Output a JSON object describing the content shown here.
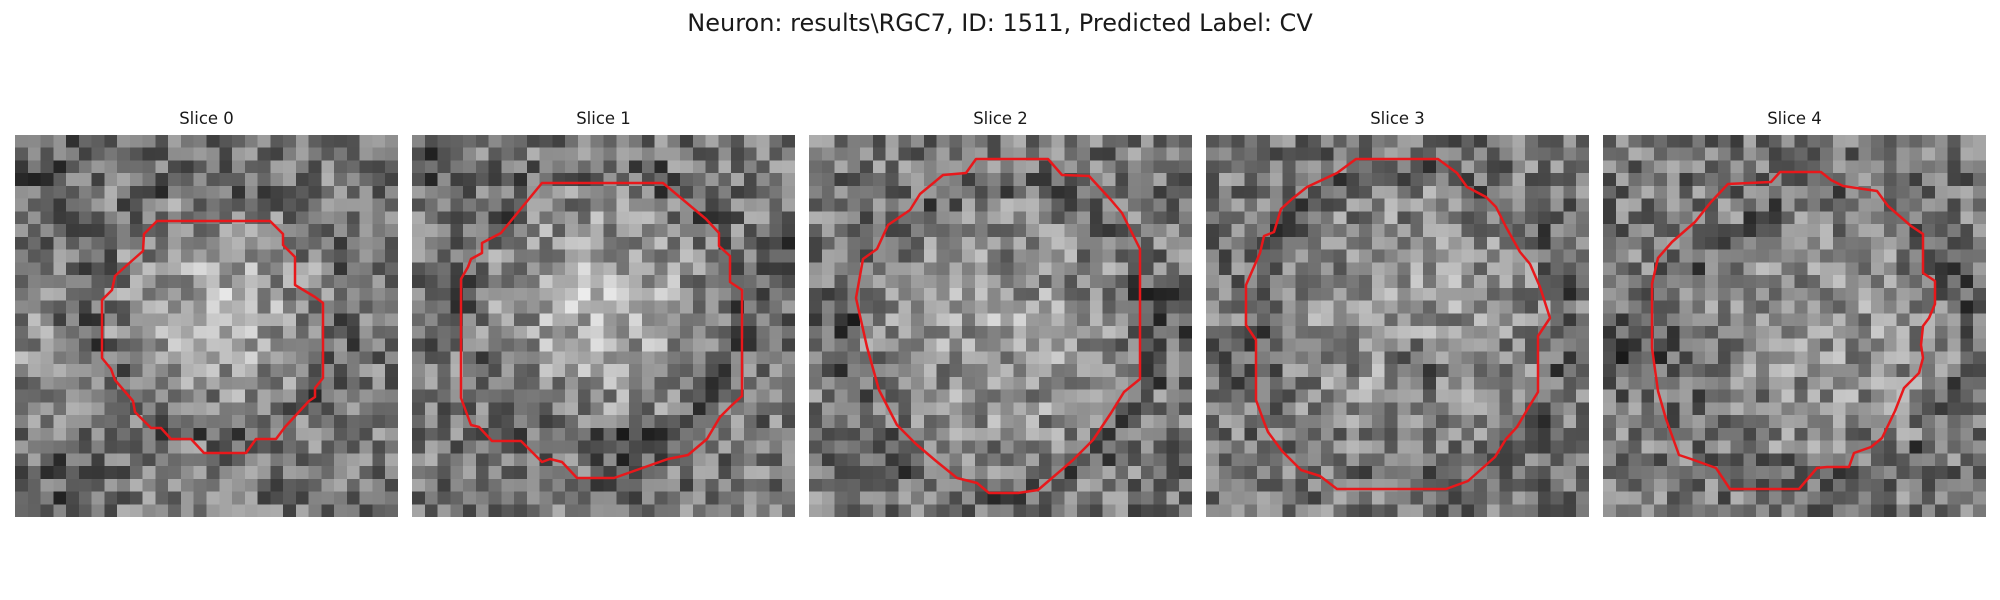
{
  "figure": {
    "title": "Neuron: results\\RGC7, ID: 1511, Predicted Label: CV"
  },
  "slices": [
    {
      "title": "Slice 0",
      "contour_color": "#e8181b"
    },
    {
      "title": "Slice 1",
      "contour_color": "#e8181b"
    },
    {
      "title": "Slice 2",
      "contour_color": "#e8181b"
    },
    {
      "title": "Slice 3",
      "contour_color": "#e8181b"
    },
    {
      "title": "Slice 4",
      "contour_color": "#e8181b"
    }
  ]
}
